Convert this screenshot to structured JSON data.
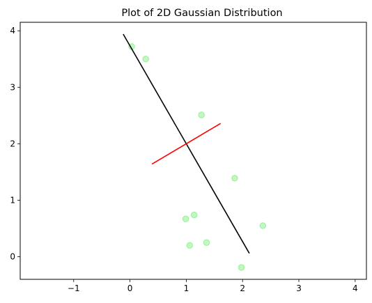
{
  "chart_data": {
    "type": "scatter",
    "title": "Plot of 2D Gaussian Distribution",
    "xlabel": "",
    "ylabel": "",
    "xlim": [
      -1.95,
      4.2
    ],
    "ylim": [
      -0.4,
      4.15
    ],
    "xticks": [
      -1,
      0,
      1,
      2,
      3,
      4
    ],
    "yticks": [
      0,
      1,
      2,
      3,
      4
    ],
    "xtick_labels": [
      "−1",
      "0",
      "1",
      "2",
      "3",
      "4"
    ],
    "ytick_labels": [
      "0",
      "1",
      "2",
      "3",
      "4"
    ],
    "grid": false,
    "points": {
      "color": "#90ee90",
      "x": [
        0.03,
        0.28,
        1.27,
        1.86,
        2.36,
        1.14,
        0.99,
        1.06,
        1.36,
        1.98
      ],
      "y": [
        3.72,
        3.5,
        2.51,
        1.39,
        0.55,
        0.74,
        0.67,
        0.2,
        0.25,
        -0.19
      ]
    },
    "lines": [
      {
        "color": "#000000",
        "x": [
          -0.12,
          2.12
        ],
        "y": [
          3.94,
          0.06
        ]
      },
      {
        "color": "#ff0000",
        "x": [
          0.39,
          1.61
        ],
        "y": [
          1.64,
          2.36
        ]
      }
    ]
  }
}
